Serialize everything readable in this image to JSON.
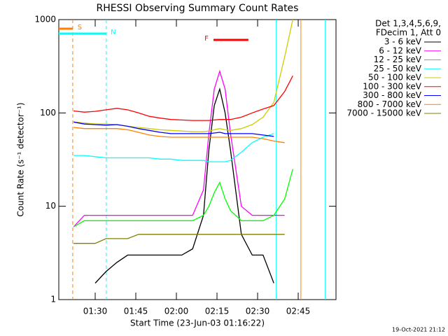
{
  "chart_data": {
    "type": "line",
    "title": "RHESSI Observing Summary Count Rates",
    "x_label": "Start Time (23-Jun-03 01:16:22)",
    "y_label": "Count Rate (s⁻¹ detector⁻¹)",
    "legend_header": [
      "Det 1,3,4,5,6,9,",
      "FDecim 1, Att 0"
    ],
    "footer": "19-Oct-2021 21:12",
    "y_log": true,
    "xlim": [
      76.55,
      178.96
    ],
    "ylim": [
      1,
      1000
    ],
    "xticks": [
      {
        "value": 90,
        "label": "01:30"
      },
      {
        "value": 105,
        "label": "01:45"
      },
      {
        "value": 120,
        "label": "02:00"
      },
      {
        "value": 135,
        "label": "02:15"
      },
      {
        "value": 150,
        "label": "02:30"
      },
      {
        "value": 165,
        "label": "02:45"
      }
    ],
    "yticks": [
      1,
      10,
      100,
      1000
    ],
    "x": [
      82,
      86,
      90,
      94,
      98,
      102,
      106,
      110,
      114,
      118,
      122,
      126,
      130,
      132,
      134,
      136,
      138,
      140,
      144,
      148,
      152,
      156,
      160,
      163
    ],
    "series": [
      {
        "name": "3 - 6 keV",
        "color": "#000000",
        "values": [
          null,
          null,
          1.5,
          2,
          2.5,
          3,
          3,
          3,
          3,
          3,
          3,
          3.5,
          8,
          40,
          120,
          180,
          100,
          40,
          5,
          3,
          3,
          1.5,
          null,
          null
        ]
      },
      {
        "name": "6 - 12 keV",
        "color": "#ff00ff",
        "values": [
          6,
          8,
          8,
          8,
          8,
          8,
          8,
          8,
          8,
          8,
          8,
          8,
          15,
          60,
          180,
          280,
          180,
          60,
          10,
          8,
          8,
          8,
          8,
          null
        ]
      },
      {
        "name": "12 - 25 keV",
        "color": "#00ff00",
        "values": [
          6,
          7,
          7,
          7,
          7,
          7,
          7,
          7,
          7,
          7,
          7,
          7,
          8,
          10,
          14,
          18,
          12,
          9,
          7,
          7,
          7,
          8,
          12,
          25
        ]
      },
      {
        "name": "25 - 50 keV",
        "color": "#00ffff",
        "values": [
          35,
          35,
          34,
          33,
          33,
          33,
          33,
          33,
          32,
          32,
          31,
          31,
          31,
          30,
          30,
          30,
          30,
          31,
          38,
          48,
          55,
          60,
          null,
          null
        ]
      },
      {
        "name": "50 - 100 keV",
        "color": "#cccc00",
        "values": [
          80,
          78,
          76,
          76,
          75,
          72,
          70,
          68,
          66,
          65,
          64,
          63,
          63,
          64,
          66,
          68,
          66,
          65,
          68,
          75,
          90,
          130,
          400,
          1000
        ]
      },
      {
        "name": "100 - 300 keV",
        "color": "#ff0000",
        "values": [
          105,
          102,
          104,
          108,
          112,
          108,
          100,
          92,
          88,
          85,
          84,
          83,
          83,
          83,
          84,
          85,
          85,
          85,
          90,
          100,
          110,
          120,
          170,
          250
        ]
      },
      {
        "name": "300 - 800 keV",
        "color": "#0000ff",
        "values": [
          80,
          76,
          75,
          74,
          75,
          72,
          68,
          65,
          62,
          60,
          60,
          60,
          60,
          60,
          61,
          62,
          60,
          60,
          60,
          60,
          58,
          56,
          null,
          null
        ]
      },
      {
        "name": "800 - 7000 keV",
        "color": "#ff8000",
        "values": [
          70,
          68,
          68,
          68,
          68,
          66,
          62,
          58,
          56,
          55,
          55,
          55,
          55,
          55,
          55,
          55,
          55,
          55,
          55,
          55,
          53,
          50,
          48,
          null
        ]
      },
      {
        "name": "7000 - 15000 keV",
        "color": "#808000",
        "values": [
          4,
          4,
          4,
          4.5,
          4.5,
          4.5,
          5,
          5,
          5,
          5,
          5,
          5,
          5,
          5,
          5,
          5,
          5,
          5,
          5,
          5,
          5,
          5,
          5,
          null
        ]
      }
    ],
    "flag_bars": [
      {
        "label": "S",
        "color": "#ff8000",
        "start": 76.55,
        "end": 81.7
      },
      {
        "label": "N",
        "color": "#00ffff",
        "start": 76.55,
        "end": 94.1
      },
      {
        "label": "F",
        "color": "#ff0000",
        "start": 133.7,
        "end": 146.6
      }
    ],
    "time_lines": [
      {
        "value": 81.7,
        "color": "#ff8000",
        "dashed": true
      },
      {
        "value": 94.1,
        "color": "#00ffff",
        "dashed": true
      },
      {
        "value": 156.9,
        "color": "#00ffff",
        "dashed": false
      },
      {
        "value": 166,
        "color": "#ff8000",
        "dashed": false
      },
      {
        "value": 175,
        "color": "#00ffff",
        "dashed": false
      }
    ]
  }
}
